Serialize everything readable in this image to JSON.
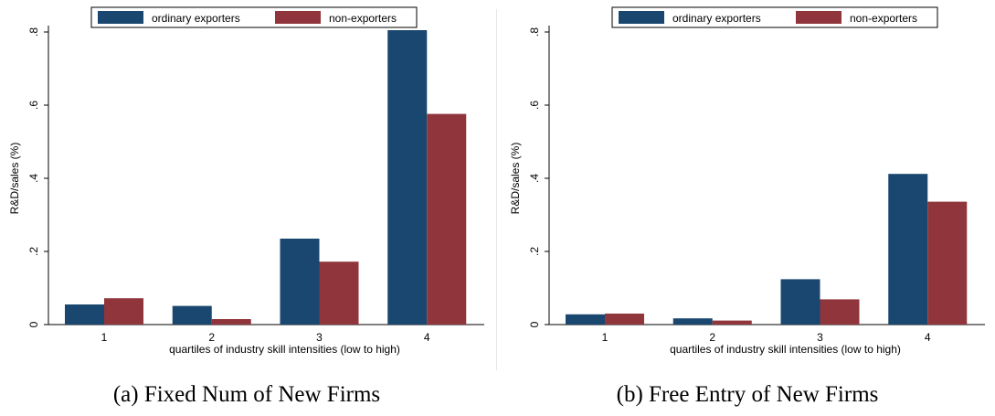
{
  "chart_data": [
    {
      "type": "bar",
      "caption": "(a) Fixed Num of New Firms",
      "categories": [
        "1",
        "2",
        "3",
        "4"
      ],
      "series": [
        {
          "name": "ordinary exporters",
          "values": [
            0.055,
            0.051,
            0.235,
            0.805
          ]
        },
        {
          "name": "non-exporters",
          "values": [
            0.072,
            0.015,
            0.172,
            0.576
          ]
        }
      ],
      "xlabel": "quartiles of industry skill intensities (low to high)",
      "ylabel": "R&D/sales (%)",
      "ylim": [
        0,
        0.8
      ],
      "yticks": [
        0,
        0.2,
        0.4,
        0.6,
        0.8
      ],
      "ytick_labels": [
        "0",
        ".2",
        ".4",
        ".6",
        ".8"
      ],
      "grid": false,
      "legend_position": "top"
    },
    {
      "type": "bar",
      "caption": "(b) Free Entry of New Firms",
      "categories": [
        "1",
        "2",
        "3",
        "4"
      ],
      "series": [
        {
          "name": "ordinary exporters",
          "values": [
            0.028,
            0.017,
            0.124,
            0.412
          ]
        },
        {
          "name": "non-exporters",
          "values": [
            0.03,
            0.011,
            0.069,
            0.336
          ]
        }
      ],
      "xlabel": "quartiles of industry skill intensities (low to high)",
      "ylabel": "R&D/sales (%)",
      "ylim": [
        0,
        0.8
      ],
      "yticks": [
        0,
        0.2,
        0.4,
        0.6,
        0.8
      ],
      "ytick_labels": [
        "0",
        ".2",
        ".4",
        ".6",
        ".8"
      ],
      "grid": false,
      "legend_position": "top"
    }
  ],
  "colors": {
    "ordinary exporters": "#1a476f",
    "non-exporters": "#90353b"
  }
}
